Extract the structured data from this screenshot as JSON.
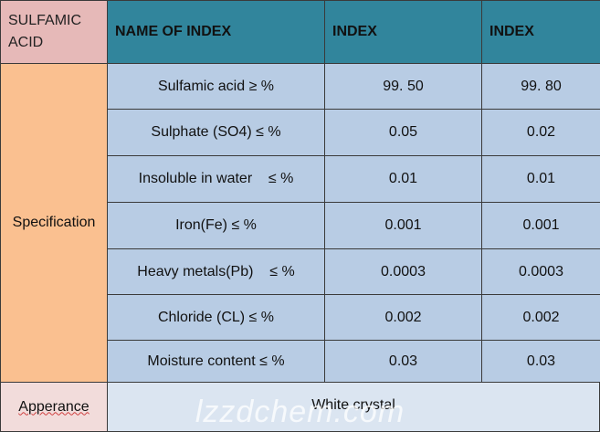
{
  "table": {
    "header": [
      "SULFAMIC ACID",
      "NAME OF INDEX",
      "INDEX",
      "INDEX"
    ],
    "spec_label": "Specification",
    "rows": [
      [
        "Sulfamic acid ≥ %",
        "99. 50",
        "99. 80"
      ],
      [
        "Sulphate (SO4) ≤ %",
        "0.05",
        "0.02"
      ],
      [
        "Insoluble in water    ≤ %",
        "0.01",
        "0.01"
      ],
      [
        "Iron(Fe) ≤ %",
        "0.001",
        "0.001"
      ],
      [
        "Heavy metals(Pb)    ≤ %",
        "0.0003",
        "0.0003"
      ],
      [
        "Chloride (CL) ≤ %",
        "0.002",
        "0.002"
      ],
      [
        "Moisture content ≤ %",
        "0.03",
        "0.03"
      ]
    ],
    "appearance_label": "Apperance",
    "appearance_value": "White crystal"
  },
  "watermark": "lzzdchem.com"
}
